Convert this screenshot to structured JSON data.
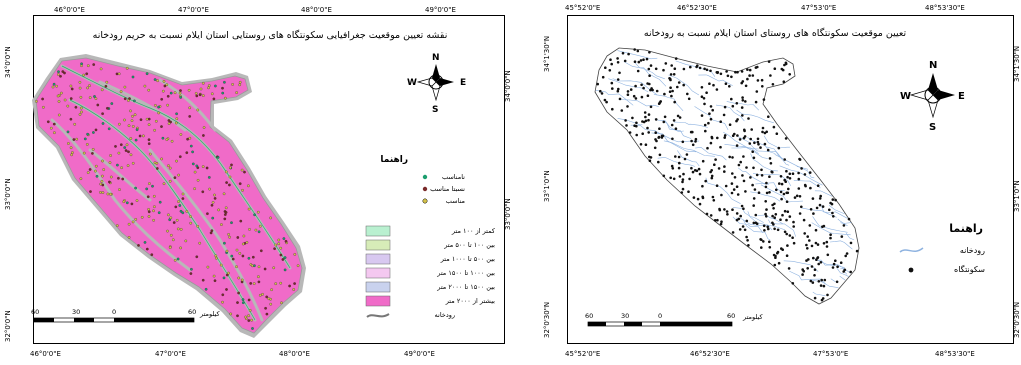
{
  "left_map": {
    "title": "نقشه تعیین موقعیت جغرافیایی سکونتگاه های روستایی استان ایلام نسبت به حریم رودخانه",
    "top_ticks": [
      "46°0'0\"E",
      "47°0'0\"E",
      "48°0'0\"E",
      "49°0'0\"E"
    ],
    "bottom_ticks": [
      "46°0'0\"E",
      "47°0'0\"E",
      "48°0'0\"E",
      "49°0'0\"E"
    ],
    "left_ticks": [
      "34°0'0\"N",
      "33°0'0\"N",
      "32°0'0\"N"
    ],
    "right_ticks": [
      "34°0'0\"N",
      "33°0'0\"N"
    ],
    "compass": {
      "n": "N",
      "s": "S",
      "e": "E",
      "w": "W"
    },
    "legend_title": "راهنما",
    "point_legend": [
      {
        "label": "نامناسب",
        "color": "#1b9e6e"
      },
      {
        "label": "نسبتا مناسب",
        "color": "#7a2a2a"
      },
      {
        "label": "مناسب",
        "color": "#d4c24a"
      }
    ],
    "zone_legend": [
      {
        "label": "کمتر از ۱۰۰ متر",
        "color": "#b9f0d0"
      },
      {
        "label": "بین ۱۰۰ تا ۵۰۰ متر",
        "color": "#d7ecb8"
      },
      {
        "label": "بین ۵۰۰ تا ۱۰۰۰ متر",
        "color": "#d8c8f0"
      },
      {
        "label": "بین ۱۰۰۰ تا ۱۵۰۰ متر",
        "color": "#f4c8f0"
      },
      {
        "label": "بین ۱۵۰۰ تا ۲۰۰۰ متر",
        "color": "#c9d2ee"
      },
      {
        "label": "بیشتر از ۲۰۰۰ متر",
        "color": "#f06bc8"
      }
    ],
    "river_legend": "رودخانه",
    "scale": {
      "labels": [
        "60",
        "30",
        "0",
        "60"
      ],
      "unit": "کیلومتر"
    }
  },
  "right_map": {
    "title": "تعیین موقعیت سکونتگاه های روستای استان ایلام نسبت به رودخانه",
    "top_ticks": [
      "45°52'0\"E",
      "46°52'30\"E",
      "47°53'0\"E",
      "48°53'30\"E"
    ],
    "bottom_ticks": [
      "45°52'0\"E",
      "46°52'30\"E",
      "47°53'0\"E",
      "48°53'30\"E"
    ],
    "left_ticks": [
      "34°1'30\"N",
      "33°1'0\"N",
      "32°0'30\"N"
    ],
    "right_ticks": [
      "34°1'30\"N",
      "33°1'0\"N",
      "32°0'30\"N"
    ],
    "compass": {
      "n": "N",
      "s": "S",
      "e": "E",
      "w": "W"
    },
    "legend_title": "راهنما",
    "legend_items": [
      {
        "label": "رودخانه",
        "symbol": "river",
        "color": "#8fb3e0"
      },
      {
        "label": "سکونتگاه",
        "symbol": "dot",
        "color": "#111111"
      }
    ],
    "scale": {
      "labels": [
        "60",
        "30",
        "0",
        "60"
      ],
      "unit": "کیلومتر"
    }
  },
  "colors": {
    "province_fill_left": "#f06bc8",
    "buffer": "#b8b8b8",
    "river_right": "#8fb3e0",
    "settlement_dot": "#111111"
  }
}
